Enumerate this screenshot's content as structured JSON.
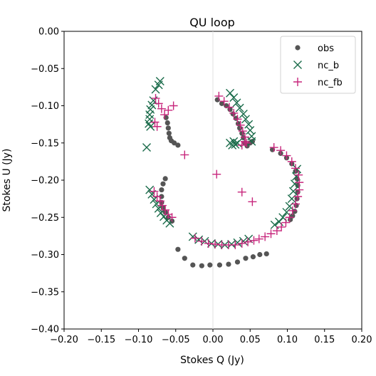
{
  "chart_data": {
    "type": "scatter",
    "title": "QU loop",
    "xlabel": "Stokes Q (Jy)",
    "ylabel": "Stokes U (Jy)",
    "xlim": [
      -0.2,
      0.2
    ],
    "ylim": [
      -0.4,
      0.0
    ],
    "xticks": [
      "−0.20",
      "−0.15",
      "−0.10",
      "−0.05",
      "0.00",
      "0.05",
      "0.10",
      "0.15",
      "0.20"
    ],
    "yticks": [
      "0.00",
      "−0.05",
      "−0.10",
      "−0.15",
      "−0.20",
      "−0.25",
      "−0.30",
      "−0.35",
      "−0.40"
    ],
    "grid": false,
    "reference_lines": {
      "vertical_at_x": 0.0
    },
    "legend_position": "top-right",
    "colors": {
      "obs": "#555555",
      "nc_b": "#1a6b4a",
      "nc_fb": "#c7267c"
    },
    "series": [
      {
        "name": "obs",
        "marker": "circle",
        "points": [
          [
            -0.063,
            -0.116
          ],
          [
            -0.061,
            -0.123
          ],
          [
            -0.06,
            -0.13
          ],
          [
            -0.059,
            -0.137
          ],
          [
            -0.058,
            -0.143
          ],
          [
            -0.056,
            -0.147
          ],
          [
            -0.052,
            -0.15
          ],
          [
            -0.047,
            -0.153
          ],
          [
            0.006,
            -0.092
          ],
          [
            0.012,
            -0.097
          ],
          [
            0.018,
            -0.1
          ],
          [
            0.023,
            -0.105
          ],
          [
            0.027,
            -0.111
          ],
          [
            0.031,
            -0.117
          ],
          [
            0.034,
            -0.124
          ],
          [
            0.036,
            -0.13
          ],
          [
            0.039,
            -0.137
          ],
          [
            0.041,
            -0.143
          ],
          [
            0.043,
            -0.15
          ],
          [
            0.046,
            -0.154
          ],
          [
            0.05,
            -0.15
          ],
          [
            0.053,
            -0.148
          ],
          [
            0.08,
            -0.159
          ],
          [
            0.091,
            -0.164
          ],
          [
            0.099,
            -0.17
          ],
          [
            0.106,
            -0.178
          ],
          [
            0.111,
            -0.188
          ],
          [
            0.113,
            -0.198
          ],
          [
            0.114,
            -0.207
          ],
          [
            0.114,
            -0.216
          ],
          [
            0.113,
            -0.225
          ],
          [
            0.112,
            -0.234
          ],
          [
            0.11,
            -0.242
          ],
          [
            0.107,
            -0.248
          ],
          [
            0.104,
            -0.253
          ],
          [
            -0.064,
            -0.198
          ],
          [
            -0.067,
            -0.205
          ],
          [
            -0.069,
            -0.213
          ],
          [
            -0.069,
            -0.222
          ],
          [
            -0.069,
            -0.23
          ],
          [
            -0.067,
            -0.237
          ],
          [
            -0.064,
            -0.243
          ],
          [
            -0.06,
            -0.25
          ],
          [
            -0.055,
            -0.255
          ],
          [
            -0.047,
            -0.293
          ],
          [
            -0.038,
            -0.305
          ],
          [
            -0.027,
            -0.314
          ],
          [
            -0.015,
            -0.315
          ],
          [
            -0.004,
            -0.314
          ],
          [
            0.009,
            -0.314
          ],
          [
            0.021,
            -0.313
          ],
          [
            0.033,
            -0.31
          ],
          [
            0.044,
            -0.305
          ],
          [
            0.054,
            -0.303
          ],
          [
            0.063,
            -0.3
          ],
          [
            0.072,
            -0.299
          ]
        ]
      },
      {
        "name": "nc_b",
        "marker": "x",
        "points": [
          [
            -0.071,
            -0.067
          ],
          [
            -0.073,
            -0.072
          ],
          [
            -0.077,
            -0.078
          ],
          [
            -0.08,
            -0.093
          ],
          [
            -0.082,
            -0.099
          ],
          [
            -0.084,
            -0.105
          ],
          [
            -0.085,
            -0.112
          ],
          [
            -0.085,
            -0.118
          ],
          [
            -0.086,
            -0.124
          ],
          [
            -0.084,
            -0.128
          ],
          [
            -0.089,
            -0.156
          ],
          [
            0.023,
            -0.083
          ],
          [
            0.028,
            -0.089
          ],
          [
            0.032,
            -0.096
          ],
          [
            0.036,
            -0.103
          ],
          [
            0.041,
            -0.111
          ],
          [
            0.044,
            -0.118
          ],
          [
            0.048,
            -0.125
          ],
          [
            0.05,
            -0.133
          ],
          [
            0.052,
            -0.141
          ],
          [
            0.052,
            -0.148
          ],
          [
            0.023,
            -0.15
          ],
          [
            0.026,
            -0.153
          ],
          [
            0.028,
            -0.148
          ],
          [
            0.03,
            -0.152
          ],
          [
            0.033,
            -0.15
          ],
          [
            0.113,
            -0.185
          ],
          [
            0.112,
            -0.195
          ],
          [
            0.11,
            -0.205
          ],
          [
            0.108,
            -0.215
          ],
          [
            0.106,
            -0.225
          ],
          [
            0.103,
            -0.235
          ],
          [
            0.099,
            -0.243
          ],
          [
            0.094,
            -0.25
          ],
          [
            0.089,
            -0.256
          ],
          [
            0.083,
            -0.26
          ],
          [
            -0.085,
            -0.213
          ],
          [
            -0.082,
            -0.219
          ],
          [
            -0.079,
            -0.226
          ],
          [
            -0.076,
            -0.232
          ],
          [
            -0.073,
            -0.238
          ],
          [
            -0.07,
            -0.244
          ],
          [
            -0.066,
            -0.249
          ],
          [
            -0.062,
            -0.254
          ],
          [
            -0.058,
            -0.258
          ],
          [
            -0.027,
            -0.276
          ],
          [
            -0.019,
            -0.28
          ],
          [
            -0.011,
            -0.282
          ],
          [
            -0.002,
            -0.285
          ],
          [
            0.007,
            -0.286
          ],
          [
            0.016,
            -0.287
          ],
          [
            0.025,
            -0.286
          ],
          [
            0.033,
            -0.284
          ],
          [
            0.041,
            -0.282
          ],
          [
            0.048,
            -0.279
          ]
        ]
      },
      {
        "name": "nc_fb",
        "marker": "plus",
        "points": [
          [
            -0.077,
            -0.09
          ],
          [
            -0.073,
            -0.097
          ],
          [
            -0.069,
            -0.104
          ],
          [
            -0.065,
            -0.112
          ],
          [
            -0.06,
            -0.106
          ],
          [
            -0.053,
            -0.1
          ],
          [
            -0.078,
            -0.122
          ],
          [
            -0.075,
            -0.128
          ],
          [
            0.008,
            -0.087
          ],
          [
            0.015,
            -0.094
          ],
          [
            0.022,
            -0.102
          ],
          [
            0.028,
            -0.11
          ],
          [
            0.033,
            -0.118
          ],
          [
            0.037,
            -0.126
          ],
          [
            0.04,
            -0.134
          ],
          [
            0.043,
            -0.142
          ],
          [
            0.045,
            -0.15
          ],
          [
            0.039,
            -0.153
          ],
          [
            0.043,
            -0.148
          ],
          [
            -0.038,
            -0.166
          ],
          [
            0.005,
            -0.192
          ],
          [
            0.039,
            -0.216
          ],
          [
            0.053,
            -0.229
          ],
          [
            0.082,
            -0.156
          ],
          [
            0.091,
            -0.16
          ],
          [
            0.099,
            -0.167
          ],
          [
            0.106,
            -0.175
          ],
          [
            0.111,
            -0.184
          ],
          [
            0.115,
            -0.193
          ],
          [
            0.116,
            -0.203
          ],
          [
            0.116,
            -0.213
          ],
          [
            0.114,
            -0.222
          ],
          [
            0.111,
            -0.232
          ],
          [
            0.107,
            -0.241
          ],
          [
            0.103,
            -0.25
          ],
          [
            0.098,
            -0.257
          ],
          [
            0.092,
            -0.263
          ],
          [
            0.086,
            -0.268
          ],
          [
            0.078,
            -0.272
          ],
          [
            0.07,
            -0.276
          ],
          [
            -0.079,
            -0.215
          ],
          [
            -0.075,
            -0.222
          ],
          [
            -0.071,
            -0.228
          ],
          [
            -0.068,
            -0.234
          ],
          [
            -0.064,
            -0.24
          ],
          [
            -0.06,
            -0.246
          ],
          [
            -0.055,
            -0.25
          ],
          [
            -0.024,
            -0.278
          ],
          [
            -0.015,
            -0.282
          ],
          [
            -0.006,
            -0.285
          ],
          [
            0.003,
            -0.286
          ],
          [
            0.012,
            -0.287
          ],
          [
            0.021,
            -0.287
          ],
          [
            0.03,
            -0.287
          ],
          [
            0.039,
            -0.285
          ],
          [
            0.047,
            -0.283
          ],
          [
            0.055,
            -0.281
          ],
          [
            0.062,
            -0.279
          ]
        ]
      }
    ]
  }
}
